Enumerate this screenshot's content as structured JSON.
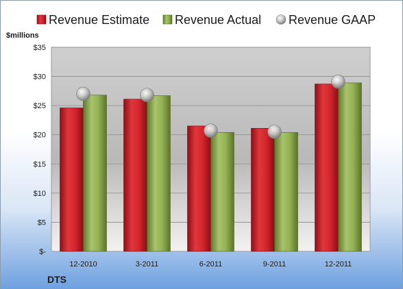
{
  "chart_data": {
    "type": "bar",
    "categories": [
      "12-2010",
      "3-2011",
      "6-2011",
      "9-2011",
      "12-2011"
    ],
    "series": [
      {
        "name": "Revenue Estimate",
        "type": "bar",
        "color": "#cc1f26",
        "values": [
          24.6,
          26.1,
          21.5,
          21.1,
          28.7
        ]
      },
      {
        "name": "Revenue Actual",
        "type": "bar",
        "color": "#8fae4f",
        "values": [
          26.8,
          26.7,
          20.4,
          20.4,
          28.9
        ]
      },
      {
        "name": "Revenue GAAP",
        "type": "scatter",
        "color": "#b8b8b8",
        "values": [
          27.0,
          26.8,
          20.7,
          20.5,
          29.1
        ]
      }
    ],
    "ylabel": "$millions",
    "ylim": [
      0,
      35
    ],
    "yticks": [
      0,
      5,
      10,
      15,
      20,
      25,
      30,
      35
    ],
    "ytick_labels": [
      "$-",
      "$5",
      "$10",
      "$15",
      "$20",
      "$25",
      "$30",
      "$35"
    ],
    "grid": true,
    "legend_position": "top",
    "ticker": "DTS"
  }
}
